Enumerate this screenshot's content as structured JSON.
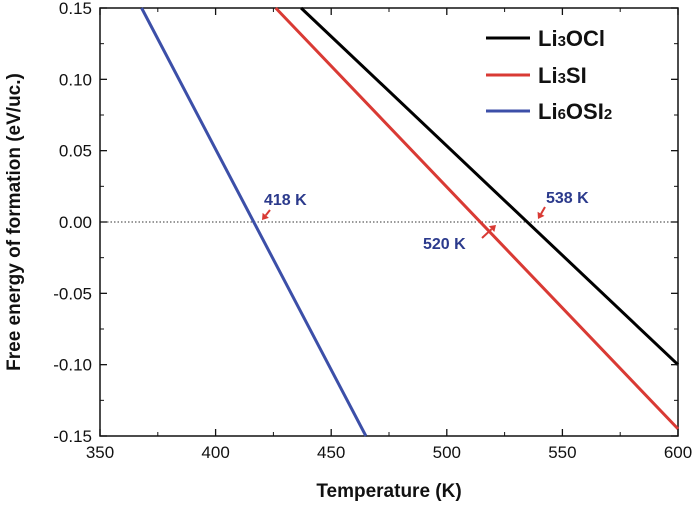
{
  "chart_data": {
    "type": "line",
    "xlabel": "Temperature (K)",
    "ylabel": "Free energy of formation (eV/uc.)",
    "xlim": [
      350,
      600
    ],
    "ylim": [
      -0.15,
      0.15
    ],
    "xticks": [
      350,
      400,
      450,
      500,
      550,
      600
    ],
    "yticks": [
      -0.15,
      -0.1,
      -0.05,
      0.0,
      0.05,
      0.1,
      0.15
    ],
    "xtick_labels": [
      "350",
      "400",
      "450",
      "500",
      "550",
      "600"
    ],
    "ytick_labels": [
      "-0.15",
      "-0.10",
      "-0.05",
      "0.00",
      "0.05",
      "0.10",
      "0.15"
    ],
    "grid": false,
    "legend_position": "top-right",
    "reference_line": {
      "y": 0.0,
      "style": "dotted"
    },
    "series": [
      {
        "name_parts": [
          "Li",
          "3",
          "OCl"
        ],
        "color": "#000000",
        "x": [
          437,
          600
        ],
        "y": [
          0.15,
          -0.1
        ]
      },
      {
        "name_parts": [
          "Li",
          "3",
          "SI"
        ],
        "color": "#d93a34",
        "x": [
          426,
          600
        ],
        "y": [
          0.15,
          -0.145
        ]
      },
      {
        "name_parts": [
          "Li",
          "6",
          "OSI",
          "2"
        ],
        "color": "#3c4fa8",
        "x": [
          368,
          465
        ],
        "y": [
          0.15,
          -0.15
        ]
      }
    ],
    "annotations": [
      {
        "text": "418 K",
        "x": 418,
        "y": 0.0,
        "color": "#2b3a8c",
        "arrow_color": "#d93a34"
      },
      {
        "text": "520 K",
        "x": 520,
        "y": 0.0,
        "color": "#2b3a8c",
        "arrow_color": "#d93a34"
      },
      {
        "text": "538 K",
        "x": 538,
        "y": 0.0,
        "color": "#2b3a8c",
        "arrow_color": "#d93a34"
      }
    ]
  }
}
